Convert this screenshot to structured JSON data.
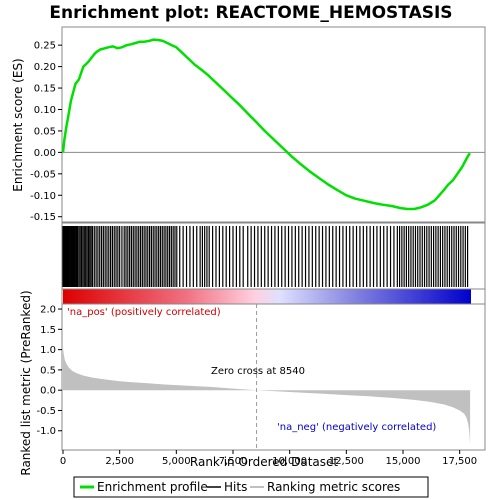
{
  "chart_data": {
    "type": "line",
    "title": "Enrichment plot: REACTOME_HEMOSTASIS",
    "top_panel": {
      "ylabel": "Enrichment score (ES)",
      "ylim": [
        -0.16,
        0.29
      ],
      "yticks": [
        -0.15,
        -0.1,
        -0.05,
        0.0,
        0.05,
        0.1,
        0.15,
        0.2,
        0.25
      ],
      "ytick_labels": [
        "-0.15",
        "-0.10",
        "-0.05",
        "0.00",
        "0.05",
        "0.10",
        "0.15",
        "0.20",
        "0.25"
      ],
      "series": [
        {
          "name": "Enrichment profile",
          "color": "#00e000",
          "x": [
            0,
            60,
            150,
            250,
            350,
            450,
            550,
            700,
            800,
            900,
            1000,
            1100,
            1250,
            1400,
            1500,
            1650,
            1800,
            2000,
            2200,
            2400,
            2600,
            2800,
            3000,
            3200,
            3400,
            3600,
            3800,
            4000,
            4200,
            4400,
            4600,
            4800,
            5000,
            5200,
            5500,
            5800,
            6100,
            6400,
            6700,
            7000,
            7400,
            7800,
            8200,
            8540,
            8900,
            9300,
            9700,
            10100,
            10500,
            10900,
            11300,
            11700,
            12100,
            12500,
            12900,
            13300,
            13700,
            14100,
            14500,
            14900,
            15200,
            15500,
            15800,
            16100,
            16400,
            16600,
            16800,
            17000,
            17200,
            17400,
            17600,
            17750,
            17850,
            17950
          ],
          "y": [
            0.0,
            0.03,
            0.06,
            0.09,
            0.12,
            0.14,
            0.16,
            0.17,
            0.185,
            0.2,
            0.205,
            0.21,
            0.22,
            0.23,
            0.235,
            0.24,
            0.242,
            0.245,
            0.247,
            0.243,
            0.245,
            0.25,
            0.252,
            0.255,
            0.258,
            0.258,
            0.26,
            0.263,
            0.262,
            0.26,
            0.255,
            0.25,
            0.245,
            0.235,
            0.22,
            0.205,
            0.193,
            0.18,
            0.165,
            0.15,
            0.13,
            0.11,
            0.088,
            0.07,
            0.05,
            0.03,
            0.01,
            -0.01,
            -0.028,
            -0.045,
            -0.06,
            -0.075,
            -0.088,
            -0.1,
            -0.108,
            -0.113,
            -0.118,
            -0.122,
            -0.125,
            -0.13,
            -0.132,
            -0.132,
            -0.128,
            -0.122,
            -0.112,
            -0.1,
            -0.088,
            -0.075,
            -0.065,
            -0.05,
            -0.035,
            -0.02,
            -0.01,
            -0.002
          ]
        }
      ]
    },
    "hits": {
      "name": "Hits",
      "ranks": [
        0,
        20,
        40,
        60,
        90,
        120,
        150,
        180,
        210,
        240,
        280,
        320,
        360,
        400,
        440,
        480,
        520,
        560,
        600,
        640,
        700,
        760,
        820,
        880,
        940,
        1000,
        1060,
        1120,
        1180,
        1240,
        1300,
        1380,
        1460,
        1540,
        1620,
        1700,
        1780,
        1860,
        1940,
        2020,
        2100,
        2180,
        2260,
        2340,
        2420,
        2500,
        2600,
        2700,
        2780,
        2860,
        2940,
        3020,
        3100,
        3180,
        3260,
        3340,
        3420,
        3500,
        3580,
        3660,
        3740,
        3820,
        3900,
        3980,
        4060,
        4140,
        4220,
        4300,
        4380,
        4460,
        4540,
        4620,
        4700,
        4780,
        4860,
        4940,
        5020,
        5150,
        5300,
        5450,
        5600,
        5750,
        5900,
        6050,
        6150,
        6250,
        6350,
        6450,
        6600,
        6750,
        6900,
        7050,
        7200,
        7350,
        7500,
        7650,
        7800,
        7950,
        8150,
        8300,
        8450,
        8600,
        8750,
        8900,
        9050,
        9200,
        9350,
        9500,
        9650,
        9800,
        9950,
        10100,
        10250,
        10400,
        10550,
        10700,
        10850,
        11000,
        11150,
        11300,
        11450,
        11600,
        11750,
        11900,
        12050,
        12200,
        12350,
        12500,
        12650,
        12800,
        12950,
        13100,
        13250,
        13400,
        13550,
        13700,
        13850,
        14000,
        14150,
        14300,
        14450,
        14600,
        14750,
        14850,
        14950,
        15050,
        15150,
        15250,
        15350,
        15450,
        15550,
        15650,
        15750,
        15850,
        15950,
        16050,
        16150,
        16250,
        16350,
        16450,
        16550,
        16650,
        16750,
        16850,
        16950,
        17050,
        17150,
        17250,
        17350,
        17450,
        17550,
        17650,
        17750,
        17850
      ]
    },
    "bottom_panel": {
      "xlabel": "Rank in Ordered Dataset",
      "ylabel": "Ranked list metric (PreRanked)",
      "xlim": [
        0,
        18000
      ],
      "ylim": [
        -1.45,
        2.1
      ],
      "xticks": [
        0,
        2500,
        5000,
        7500,
        10000,
        12500,
        15000,
        17500
      ],
      "xtick_labels": [
        "0",
        "2,500",
        "5,000",
        "7,500",
        "10,000",
        "12,500",
        "15,000",
        "17,500"
      ],
      "yticks": [
        -1.0,
        -0.5,
        0.0,
        0.5,
        1.0,
        1.5,
        2.0
      ],
      "ytick_labels": [
        "-1.0",
        "-0.5",
        "0.0",
        "0.5",
        "1.0",
        "1.5",
        "2.0"
      ],
      "metric": {
        "name": "Ranking metric scores",
        "color": "#c0c0c0",
        "x": [
          0,
          30,
          80,
          150,
          250,
          400,
          600,
          900,
          1300,
          1800,
          2500,
          3500,
          4500,
          5500,
          6500,
          7500,
          8540,
          9500,
          10500,
          11500,
          12500,
          13500,
          14500,
          15500,
          16200,
          16800,
          17200,
          17500,
          17700,
          17800,
          17870,
          17920,
          17960
        ],
        "y": [
          1.05,
          0.9,
          0.75,
          0.65,
          0.56,
          0.48,
          0.42,
          0.36,
          0.31,
          0.27,
          0.22,
          0.18,
          0.14,
          0.11,
          0.08,
          0.04,
          0.0,
          -0.03,
          -0.06,
          -0.09,
          -0.12,
          -0.15,
          -0.19,
          -0.24,
          -0.29,
          -0.35,
          -0.42,
          -0.5,
          -0.58,
          -0.68,
          -0.82,
          -1.0,
          -1.35
        ]
      },
      "zero_cross": 8540,
      "zero_cross_label": "Zero cross at 8540",
      "pos_label": "'na_pos' (positively correlated)",
      "neg_label": "'na_neg' (negatively correlated)",
      "pos_color": "#cc0000",
      "neg_color": "#0000cc"
    },
    "legend": [
      {
        "label": "Enrichment profile",
        "color": "#00e000"
      },
      {
        "label": "Hits",
        "color": "#000000"
      },
      {
        "label": "Ranking metric scores",
        "color": "#c0c0c0"
      }
    ]
  }
}
